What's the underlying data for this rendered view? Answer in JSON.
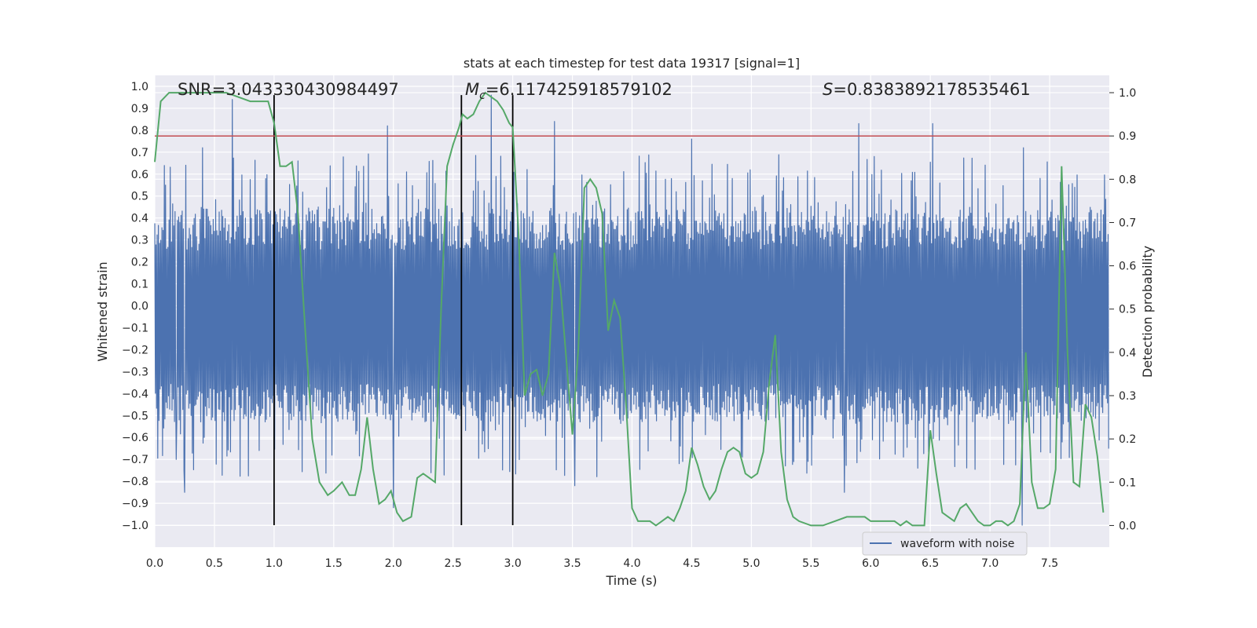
{
  "chart_data": {
    "type": "line",
    "title": "stats at each timestep for test data 19317 [signal=1]",
    "xlabel": "Time (s)",
    "ylabel": "Whitened strain",
    "y2label": "Detection probability",
    "xlim": [
      0.0,
      8.0
    ],
    "ylim": [
      -1.1,
      1.05
    ],
    "y2lim": [
      -0.05,
      1.04
    ],
    "x_ticks": [
      "0.0",
      "0.5",
      "1.0",
      "1.5",
      "2.0",
      "2.5",
      "3.0",
      "3.5",
      "4.0",
      "4.5",
      "5.0",
      "5.5",
      "6.0",
      "6.5",
      "7.0",
      "7.5"
    ],
    "y_ticks": [
      "1.0",
      "0.9",
      "0.8",
      "0.7",
      "0.6",
      "0.5",
      "0.4",
      "0.3",
      "0.2",
      "0.1",
      "0.0",
      "−0.1",
      "−0.2",
      "−0.3",
      "−0.4",
      "−0.5",
      "−0.6",
      "−0.7",
      "−0.8",
      "−0.9",
      "−1.0"
    ],
    "y2_ticks": [
      "1.0",
      "0.9",
      "0.8",
      "0.7",
      "0.6",
      "0.5",
      "0.4",
      "0.3",
      "0.2",
      "0.1",
      "0.0"
    ],
    "annotations": {
      "snr": "SNR=3.043330430984497",
      "mc_symbol": "M",
      "mc_sub": "c",
      "mc_value": "=6.117425918579102",
      "s_symbol": "S",
      "s_value": "=0.8383892178535461"
    },
    "legend": {
      "label": "waveform with noise",
      "location": "lower right"
    },
    "threshold_line": {
      "value": 0.9,
      "axis": "y2",
      "color": "#c44e52"
    },
    "vertical_lines": [
      1.0,
      2.57,
      3.0
    ],
    "series": [
      {
        "name": "waveform with noise",
        "axis": "y",
        "color": "#4c72b0",
        "generator": {
          "sample_rate_hz": 200,
          "envelope": [
            -0.42,
            0.32
          ],
          "spike_seed": 19317
        },
        "peaks": [
          {
            "t": 0.65,
            "v": 0.94
          },
          {
            "t": 0.4,
            "v": 0.72
          },
          {
            "t": 1.95,
            "v": 0.82
          },
          {
            "t": 2.82,
            "v": 0.96
          },
          {
            "t": 3.35,
            "v": 0.84
          },
          {
            "t": 4.5,
            "v": 0.76
          },
          {
            "t": 5.9,
            "v": 0.83
          },
          {
            "t": 6.52,
            "v": 0.83
          },
          {
            "t": 7.28,
            "v": 0.72
          },
          {
            "t": 0.25,
            "v": -0.85
          },
          {
            "t": 2.0,
            "v": -0.92
          },
          {
            "t": 5.78,
            "v": -0.85
          },
          {
            "t": 7.27,
            "v": -1.0
          },
          {
            "t": 3.52,
            "v": -0.82
          },
          {
            "t": 0.18,
            "v": -0.7
          }
        ]
      },
      {
        "name": "Detection probability",
        "axis": "y2",
        "color": "#55a868",
        "x": [
          0.0,
          0.05,
          0.12,
          0.2,
          0.3,
          0.4,
          0.5,
          0.6,
          0.7,
          0.8,
          0.85,
          0.9,
          0.95,
          1.0,
          1.05,
          1.1,
          1.15,
          1.2,
          1.25,
          1.32,
          1.38,
          1.45,
          1.5,
          1.57,
          1.63,
          1.68,
          1.73,
          1.78,
          1.83,
          1.88,
          1.93,
          1.98,
          2.03,
          2.08,
          2.15,
          2.2,
          2.25,
          2.3,
          2.35,
          2.4,
          2.45,
          2.5,
          2.55,
          2.58,
          2.62,
          2.67,
          2.72,
          2.77,
          2.82,
          2.87,
          2.92,
          2.97,
          3.0,
          3.05,
          3.1,
          3.15,
          3.2,
          3.25,
          3.3,
          3.35,
          3.4,
          3.45,
          3.5,
          3.55,
          3.6,
          3.65,
          3.7,
          3.75,
          3.8,
          3.85,
          3.9,
          3.95,
          4.0,
          4.05,
          4.1,
          4.15,
          4.2,
          4.25,
          4.3,
          4.35,
          4.4,
          4.45,
          4.5,
          4.55,
          4.6,
          4.65,
          4.7,
          4.75,
          4.8,
          4.85,
          4.9,
          4.95,
          5.0,
          5.05,
          5.1,
          5.15,
          5.2,
          5.25,
          5.3,
          5.35,
          5.4,
          5.5,
          5.6,
          5.7,
          5.8,
          5.85,
          5.9,
          5.95,
          6.0,
          6.05,
          6.1,
          6.15,
          6.2,
          6.25,
          6.3,
          6.35,
          6.4,
          6.45,
          6.5,
          6.55,
          6.6,
          6.65,
          6.7,
          6.75,
          6.8,
          6.85,
          6.9,
          6.95,
          7.0,
          7.05,
          7.1,
          7.15,
          7.2,
          7.25,
          7.3,
          7.35,
          7.4,
          7.45,
          7.5,
          7.55,
          7.6,
          7.65,
          7.7,
          7.75,
          7.8,
          7.85,
          7.9,
          7.95
        ],
        "values": [
          0.84,
          0.98,
          1.0,
          1.0,
          1.0,
          1.0,
          1.0,
          1.0,
          0.99,
          0.98,
          0.98,
          0.98,
          0.98,
          0.93,
          0.83,
          0.83,
          0.84,
          0.72,
          0.5,
          0.2,
          0.1,
          0.07,
          0.08,
          0.1,
          0.07,
          0.07,
          0.13,
          0.25,
          0.13,
          0.05,
          0.06,
          0.08,
          0.03,
          0.01,
          0.02,
          0.11,
          0.12,
          0.11,
          0.1,
          0.5,
          0.83,
          0.88,
          0.92,
          0.95,
          0.94,
          0.95,
          0.98,
          1.0,
          0.99,
          0.98,
          0.96,
          0.93,
          0.92,
          0.67,
          0.3,
          0.35,
          0.36,
          0.3,
          0.35,
          0.63,
          0.55,
          0.38,
          0.21,
          0.41,
          0.78,
          0.8,
          0.78,
          0.72,
          0.45,
          0.52,
          0.48,
          0.28,
          0.04,
          0.01,
          0.01,
          0.01,
          0.0,
          0.01,
          0.02,
          0.01,
          0.04,
          0.08,
          0.18,
          0.14,
          0.09,
          0.06,
          0.08,
          0.13,
          0.17,
          0.18,
          0.17,
          0.12,
          0.11,
          0.12,
          0.17,
          0.33,
          0.44,
          0.17,
          0.06,
          0.02,
          0.01,
          0.0,
          0.0,
          0.01,
          0.02,
          0.02,
          0.02,
          0.02,
          0.01,
          0.01,
          0.01,
          0.01,
          0.01,
          0.0,
          0.01,
          0.0,
          0.0,
          0.0,
          0.22,
          0.12,
          0.03,
          0.02,
          0.01,
          0.04,
          0.05,
          0.03,
          0.01,
          0.0,
          0.0,
          0.01,
          0.01,
          0.0,
          0.01,
          0.05,
          0.4,
          0.1,
          0.04,
          0.04,
          0.05,
          0.13,
          0.83,
          0.4,
          0.1,
          0.09,
          0.28,
          0.25,
          0.16,
          0.03
        ]
      }
    ]
  }
}
